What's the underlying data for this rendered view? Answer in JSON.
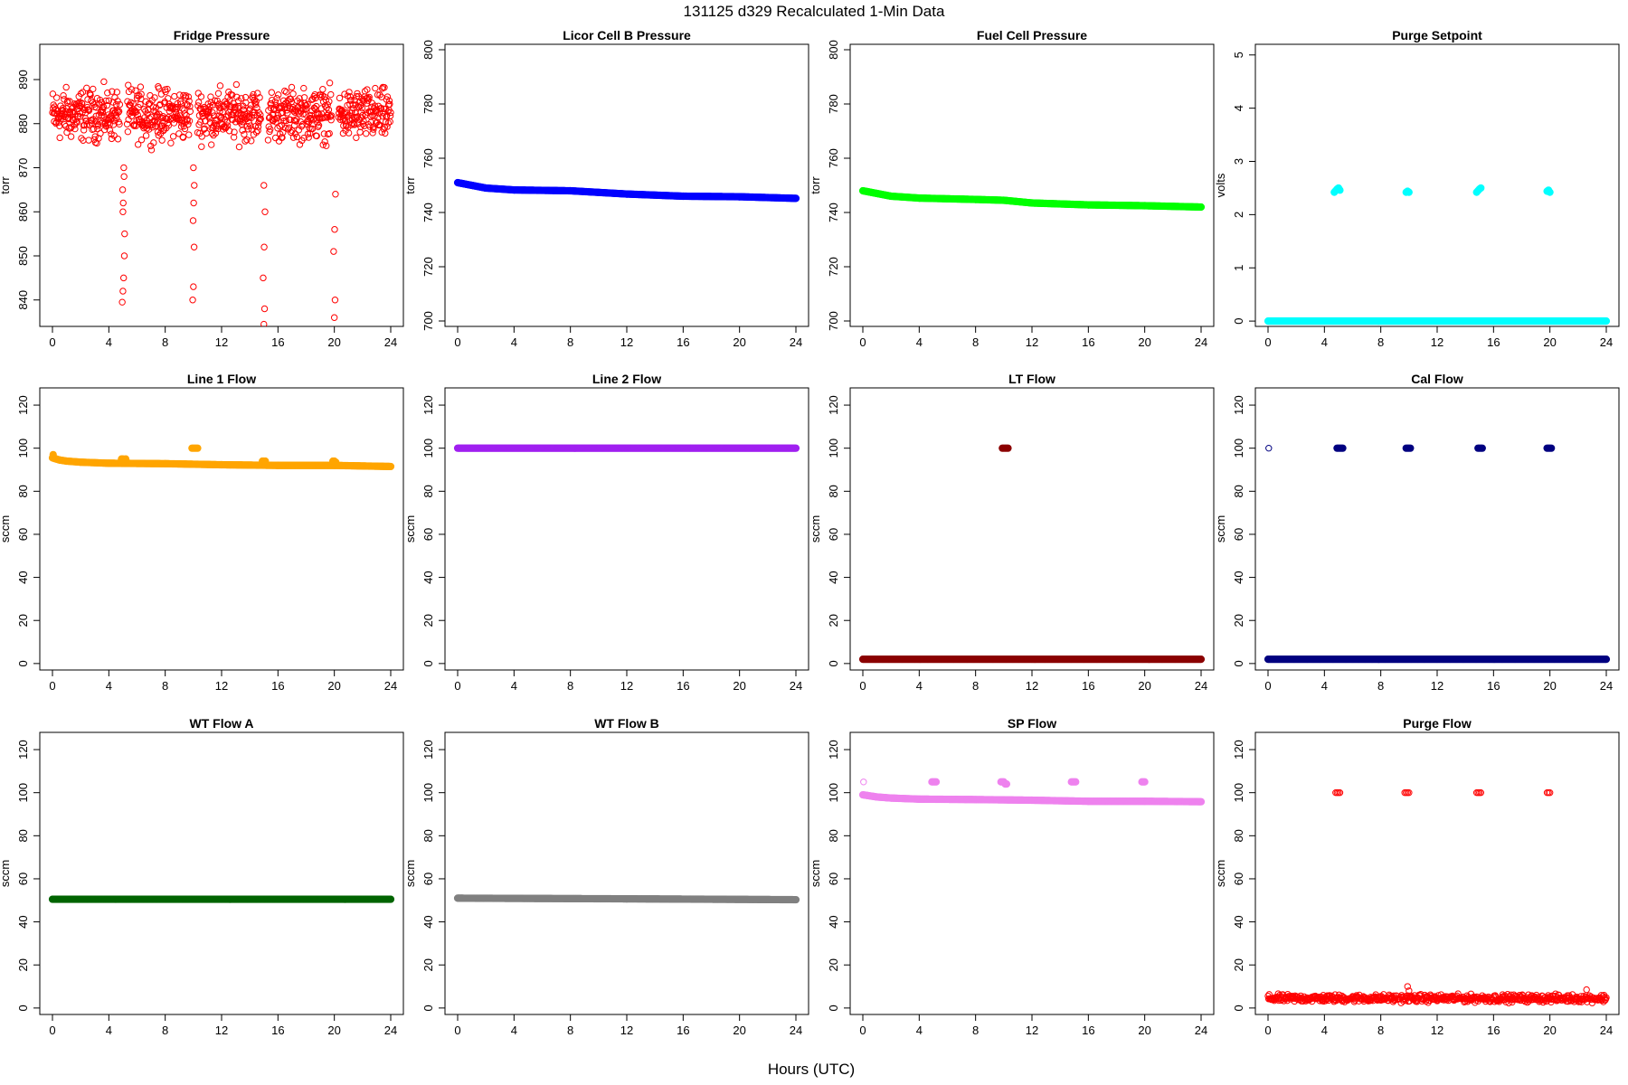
{
  "figure": {
    "title": "131125   d329   Recalculated 1-Min Data",
    "xlabel": "Hours (UTC)"
  },
  "chart_data": [
    {
      "type": "scatter",
      "title": "Fridge Pressure",
      "ylabel": "torr",
      "color": "#ff0000",
      "marker": "open-circle",
      "xlim": [
        0,
        24
      ],
      "ylim": [
        834,
        898
      ],
      "xticks": [
        0,
        4,
        8,
        12,
        16,
        20,
        24
      ],
      "yticks": [
        840,
        850,
        860,
        870,
        880,
        890
      ],
      "series": [
        {
          "kind": "noise",
          "segments": [
            [
              0,
              4.8
            ],
            [
              5.3,
              9.8
            ],
            [
              10.3,
              14.8
            ],
            [
              15.3,
              19.8
            ],
            [
              20.3,
              24
            ]
          ],
          "center": 882,
          "spread": 6,
          "step": 0.025
        },
        {
          "kind": "points",
          "x": [
            4.95,
            5.0,
            5.05,
            5.1,
            5.12,
            5.0,
            4.98,
            5.08,
            5.02,
            5.06,
            9.95,
            10.0,
            10.05,
            9.98,
            10.02,
            10.06,
            10.0,
            15.0,
            15.05,
            14.95,
            15.02,
            15.08,
            15.0,
            20.0,
            20.05,
            19.95,
            20.02,
            20.08
          ],
          "y": [
            839.5,
            842,
            845,
            850,
            855,
            860,
            865,
            868,
            862,
            870,
            840,
            843,
            852,
            858,
            862,
            866,
            870,
            834.5,
            838,
            845,
            852,
            860,
            866,
            836,
            840,
            851,
            856,
            864
          ]
        }
      ]
    },
    {
      "type": "scatter",
      "title": "Licor Cell B Pressure",
      "ylabel": "torr",
      "color": "#0000ff",
      "marker": "filled-circle",
      "xlim": [
        0,
        24
      ],
      "ylim": [
        698,
        802
      ],
      "xticks": [
        0,
        4,
        8,
        12,
        16,
        20,
        24
      ],
      "yticks": [
        700,
        720,
        740,
        760,
        780,
        800
      ],
      "series": [
        {
          "kind": "line",
          "x": [
            0,
            2,
            4,
            8,
            12,
            16,
            20,
            24
          ],
          "y": [
            751,
            749,
            748.3,
            748,
            746.8,
            746,
            745.8,
            745.2
          ]
        }
      ]
    },
    {
      "type": "scatter",
      "title": "Fuel Cell Pressure",
      "ylabel": "torr",
      "color": "#00ff00",
      "marker": "filled-circle",
      "xlim": [
        0,
        24
      ],
      "ylim": [
        698,
        802
      ],
      "xticks": [
        0,
        4,
        8,
        12,
        16,
        20,
        24
      ],
      "yticks": [
        700,
        720,
        740,
        760,
        780,
        800
      ],
      "series": [
        {
          "kind": "line",
          "x": [
            0,
            2,
            4,
            8,
            10,
            12,
            16,
            20,
            24
          ],
          "y": [
            748,
            746,
            745.3,
            744.8,
            744.5,
            743.5,
            742.8,
            742.5,
            742
          ]
        }
      ]
    },
    {
      "type": "scatter",
      "title": "Purge Setpoint",
      "ylabel": "volts",
      "color": "#00ffff",
      "marker": "filled-circle",
      "xlim": [
        0,
        24
      ],
      "ylim": [
        -0.1,
        5.2
      ],
      "xticks": [
        0,
        4,
        8,
        12,
        16,
        20,
        24
      ],
      "yticks": [
        0,
        1,
        2,
        3,
        4,
        5
      ],
      "series": [
        {
          "kind": "line",
          "x": [
            0,
            24
          ],
          "y": [
            0,
            0
          ]
        },
        {
          "kind": "points",
          "x": [
            4.7,
            4.8,
            4.9,
            5.0,
            5.1,
            9.8,
            9.9,
            10.0,
            14.8,
            14.9,
            15.0,
            15.1,
            19.8,
            19.9,
            20.0
          ],
          "y": [
            2.42,
            2.45,
            2.48,
            2.5,
            2.46,
            2.42,
            2.44,
            2.42,
            2.42,
            2.45,
            2.48,
            2.5,
            2.44,
            2.46,
            2.42
          ]
        }
      ]
    },
    {
      "type": "scatter",
      "title": "Line 1 Flow",
      "ylabel": "sccm",
      "color": "#ffa500",
      "marker": "filled-circle",
      "xlim": [
        0,
        24
      ],
      "ylim": [
        -3,
        128
      ],
      "xticks": [
        0,
        4,
        8,
        12,
        16,
        20,
        24
      ],
      "yticks": [
        0,
        20,
        40,
        60,
        80,
        100,
        120
      ],
      "series": [
        {
          "kind": "line",
          "x": [
            0,
            0.5,
            1,
            2,
            4,
            8,
            12,
            16,
            20,
            24
          ],
          "y": [
            95.5,
            94.5,
            94,
            93.5,
            93,
            92.8,
            92.3,
            92,
            92,
            91.5
          ]
        },
        {
          "kind": "points",
          "x": [
            0.05,
            4.9,
            5.0,
            5.1,
            5.2,
            9.9,
            10.0,
            10.1,
            10.2,
            10.3,
            14.9,
            15.0,
            15.1,
            19.9,
            20.0,
            20.1
          ],
          "y": [
            97,
            95,
            95,
            94.5,
            95,
            100,
            100,
            100,
            100,
            100,
            94,
            94,
            94,
            94,
            94,
            93.5
          ]
        }
      ]
    },
    {
      "type": "scatter",
      "title": "Line 2 Flow",
      "ylabel": "sccm",
      "color": "#a020f0",
      "marker": "filled-circle",
      "xlim": [
        0,
        24
      ],
      "ylim": [
        -3,
        128
      ],
      "xticks": [
        0,
        4,
        8,
        12,
        16,
        20,
        24
      ],
      "yticks": [
        0,
        20,
        40,
        60,
        80,
        100,
        120
      ],
      "series": [
        {
          "kind": "line",
          "x": [
            0,
            24
          ],
          "y": [
            100,
            100
          ]
        }
      ]
    },
    {
      "type": "scatter",
      "title": "LT Flow",
      "ylabel": "sccm",
      "color": "#8b0000",
      "marker": "filled-circle",
      "xlim": [
        0,
        24
      ],
      "ylim": [
        -3,
        128
      ],
      "xticks": [
        0,
        4,
        8,
        12,
        16,
        20,
        24
      ],
      "yticks": [
        0,
        20,
        40,
        60,
        80,
        100,
        120
      ],
      "series": [
        {
          "kind": "line",
          "x": [
            0,
            24
          ],
          "y": [
            2,
            2
          ]
        },
        {
          "kind": "points",
          "x": [
            9.9,
            10.0,
            10.1,
            10.2,
            10.3
          ],
          "y": [
            100,
            100,
            100,
            100,
            100
          ]
        }
      ]
    },
    {
      "type": "scatter",
      "title": "Cal Flow",
      "ylabel": "sccm",
      "color": "#000080",
      "marker": "filled-circle",
      "xlim": [
        0,
        24
      ],
      "ylim": [
        -3,
        128
      ],
      "xticks": [
        0,
        4,
        8,
        12,
        16,
        20,
        24
      ],
      "yticks": [
        0,
        20,
        40,
        60,
        80,
        100,
        120
      ],
      "series": [
        {
          "kind": "line",
          "x": [
            0,
            24
          ],
          "y": [
            2,
            2
          ]
        },
        {
          "kind": "points",
          "x": [
            4.9,
            5.0,
            5.1,
            5.2,
            5.3,
            9.8,
            9.9,
            10.0,
            10.1,
            14.9,
            15.0,
            15.1,
            15.2,
            19.8,
            19.9,
            20.0,
            20.1
          ],
          "y": [
            100,
            100,
            100,
            100,
            100,
            100,
            100,
            100,
            100,
            100,
            100,
            100,
            100,
            100,
            100,
            100,
            100
          ]
        },
        {
          "kind": "points",
          "marker": "open-circle",
          "x": [
            0.05
          ],
          "y": [
            100
          ]
        }
      ]
    },
    {
      "type": "scatter",
      "title": "WT Flow A",
      "ylabel": "sccm",
      "color": "#006400",
      "marker": "filled-circle",
      "xlim": [
        0,
        24
      ],
      "ylim": [
        -3,
        128
      ],
      "xticks": [
        0,
        4,
        8,
        12,
        16,
        20,
        24
      ],
      "yticks": [
        0,
        20,
        40,
        60,
        80,
        100,
        120
      ],
      "series": [
        {
          "kind": "line",
          "x": [
            0,
            24
          ],
          "y": [
            50.5,
            50.5
          ]
        }
      ]
    },
    {
      "type": "scatter",
      "title": "WT Flow B",
      "ylabel": "sccm",
      "color": "#808080",
      "marker": "filled-circle",
      "xlim": [
        0,
        24
      ],
      "ylim": [
        -3,
        128
      ],
      "xticks": [
        0,
        4,
        8,
        12,
        16,
        20,
        24
      ],
      "yticks": [
        0,
        20,
        40,
        60,
        80,
        100,
        120
      ],
      "series": [
        {
          "kind": "line",
          "x": [
            0,
            12,
            24
          ],
          "y": [
            51,
            50.7,
            50.3
          ]
        }
      ]
    },
    {
      "type": "scatter",
      "title": "SP Flow",
      "ylabel": "sccm",
      "color": "#ee82ee",
      "marker": "filled-circle",
      "xlim": [
        0,
        24
      ],
      "ylim": [
        -3,
        128
      ],
      "xticks": [
        0,
        4,
        8,
        12,
        16,
        20,
        24
      ],
      "yticks": [
        0,
        20,
        40,
        60,
        80,
        100,
        120
      ],
      "series": [
        {
          "kind": "line",
          "x": [
            0,
            1,
            2,
            4,
            8,
            12,
            16,
            20,
            24
          ],
          "y": [
            99,
            98,
            97.5,
            97,
            96.8,
            96.5,
            96,
            96,
            95.8
          ]
        },
        {
          "kind": "points",
          "x": [
            4.9,
            5.0,
            5.1,
            5.2,
            9.8,
            9.9,
            10.0,
            10.1,
            10.2,
            14.8,
            14.9,
            15.0,
            15.1,
            19.8,
            19.9,
            20.0
          ],
          "y": [
            105,
            105,
            105,
            105,
            105,
            105,
            105,
            104,
            104,
            105,
            105,
            105,
            105,
            105,
            105,
            105
          ]
        },
        {
          "kind": "points",
          "marker": "open-circle",
          "x": [
            0.05
          ],
          "y": [
            105
          ]
        }
      ]
    },
    {
      "type": "scatter",
      "title": "Purge Flow",
      "ylabel": "sccm",
      "color": "#ff0000",
      "marker": "open-circle",
      "xlim": [
        0,
        24
      ],
      "ylim": [
        -3,
        128
      ],
      "xticks": [
        0,
        4,
        8,
        12,
        16,
        20,
        24
      ],
      "yticks": [
        0,
        20,
        40,
        60,
        80,
        100,
        120
      ],
      "series": [
        {
          "kind": "noise",
          "segments": [
            [
              0,
              24
            ]
          ],
          "center": 4.5,
          "spread": 1.8,
          "step": 0.04
        },
        {
          "kind": "points",
          "x": [
            4.8,
            4.9,
            5.0,
            5.1,
            9.7,
            9.8,
            9.9,
            10.0,
            14.8,
            14.9,
            15.0,
            15.1,
            19.8,
            19.9,
            20.0,
            9.9,
            10.0,
            22.6
          ],
          "y": [
            100,
            100,
            100,
            100,
            100,
            100,
            100,
            100,
            100,
            100,
            100,
            100,
            100,
            100,
            100,
            10,
            8,
            8.5
          ]
        }
      ]
    }
  ]
}
